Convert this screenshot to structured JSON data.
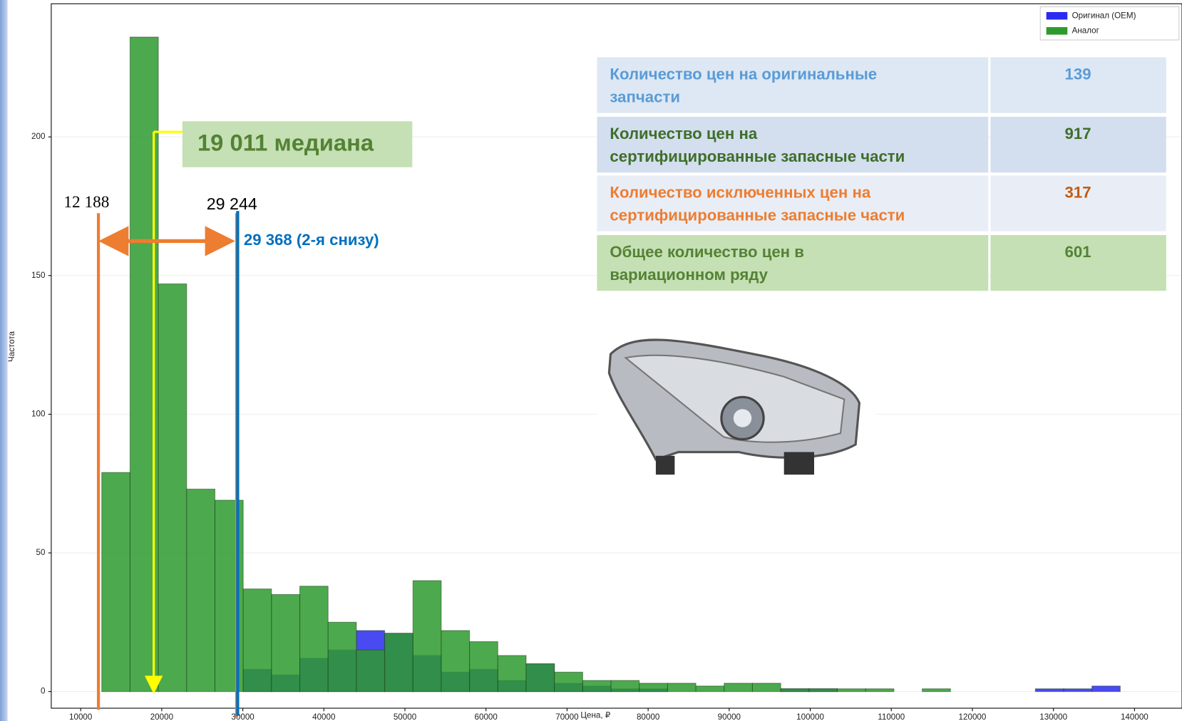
{
  "chart_data": {
    "type": "histogram",
    "xlabel": "Цена, ₽",
    "ylabel": "Частота",
    "bins": [
      12600,
      16090,
      19580,
      23070,
      26560,
      30050,
      33540,
      37030,
      40520,
      44010,
      47500,
      50990,
      54480,
      57970,
      61460,
      64950,
      68440,
      71930,
      75420,
      78910,
      82400,
      85890,
      89380,
      92870,
      96360,
      99850,
      103340,
      106830,
      110320,
      113810,
      117300,
      120790,
      124280,
      127770,
      131260,
      134750,
      138240
    ],
    "series": [
      {
        "name": "Оригинал (OEM)",
        "color": "#2a2af0",
        "values": [
          0,
          0,
          0,
          0,
          0,
          8,
          6,
          12,
          15,
          22,
          21,
          13,
          7,
          8,
          4,
          10,
          3,
          2,
          1,
          1,
          0,
          0,
          0,
          0,
          1,
          1,
          0,
          0,
          0,
          0,
          0,
          0,
          0,
          1,
          1,
          2
        ]
      },
      {
        "name": "Аналог",
        "color": "#2e9a2e",
        "values": [
          79,
          236,
          147,
          73,
          69,
          37,
          35,
          38,
          25,
          15,
          21,
          40,
          22,
          18,
          13,
          10,
          7,
          4,
          4,
          3,
          3,
          2,
          3,
          3,
          1,
          1,
          1,
          1,
          0,
          1,
          0,
          0,
          0,
          0,
          0,
          0
        ]
      }
    ],
    "xlim": [
      6370,
      145860
    ],
    "ylim": [
      -6,
      248
    ],
    "xticks": [
      10000,
      20000,
      30000,
      40000,
      50000,
      60000,
      70000,
      80000,
      90000,
      100000,
      110000,
      120000,
      130000,
      140000
    ],
    "yticks": [
      0,
      50,
      100,
      150,
      200
    ],
    "grid": true,
    "legend": "upper right",
    "annotations": [
      {
        "value": 12188,
        "label": "12 188",
        "color": "#ed7d31"
      },
      {
        "value": 29244,
        "label": "29 244",
        "color": "#ed7d31"
      },
      {
        "value": 29368,
        "label": "29 368 (2-я снизу)",
        "color": "#0070c0"
      },
      {
        "value": 19011,
        "label": "19 011 медиана",
        "color": "#ffff00"
      }
    ]
  },
  "table": {
    "rows": [
      {
        "label": [
          "Количество цен на оригинальные",
          "запчасти"
        ],
        "value": 139
      },
      {
        "label": [
          "Количество цен на",
          "сертифицированные запасные части"
        ],
        "value": 917
      },
      {
        "label": [
          "Количество исключенных цен на",
          "сертифицированные запасные части"
        ],
        "value": 317
      },
      {
        "label": [
          "Общее количество цен в",
          "вариационном ряду"
        ],
        "value": 601
      }
    ]
  }
}
